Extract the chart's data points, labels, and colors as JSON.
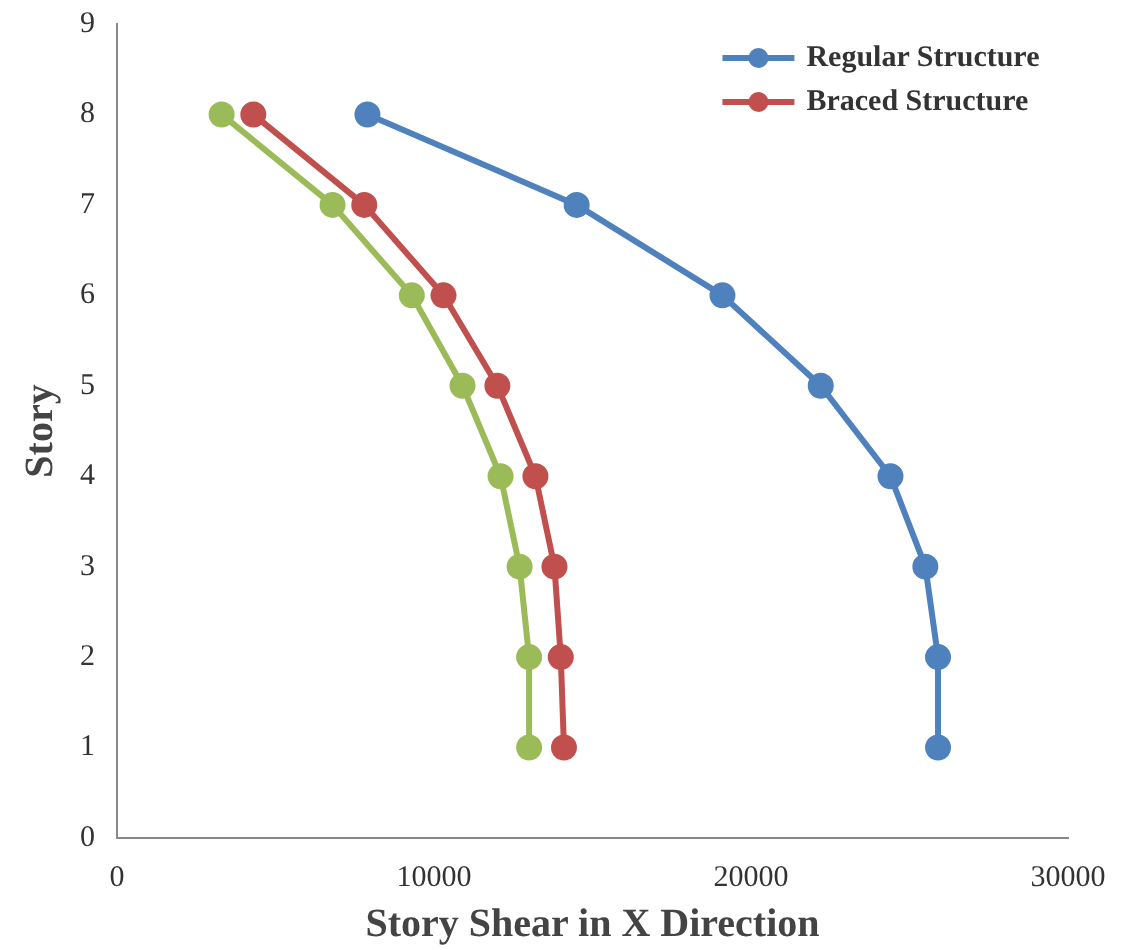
{
  "chart_data": {
    "type": "line",
    "xlabel": "Story Shear in X Direction",
    "ylabel": "Story",
    "xlim": [
      0,
      30000
    ],
    "xticks": [
      0,
      10000,
      20000,
      30000
    ],
    "ylim": [
      0,
      9
    ],
    "yticks": [
      0,
      1,
      2,
      3,
      4,
      5,
      6,
      7,
      8,
      9
    ],
    "grid": false,
    "legend": "top right",
    "marker": "circle",
    "line_style": "solid",
    "series": [
      {
        "name": "Regular Structure",
        "color": "#4f81bd",
        "x": [
          7900,
          14500,
          19100,
          22200,
          24400,
          25500,
          25900,
          25900
        ],
        "values": [
          8,
          7,
          6,
          5,
          4,
          3,
          2,
          1
        ]
      },
      {
        "name": "Braced Structure",
        "color": "#c0504d",
        "x": [
          4300,
          7800,
          10300,
          12000,
          13200,
          13800,
          14000,
          14100
        ],
        "values": [
          8,
          7,
          6,
          5,
          4,
          3,
          2,
          1
        ]
      },
      {
        "color": "#9bbb59",
        "x": [
          3300,
          6800,
          9300,
          10900,
          12100,
          12700,
          13000,
          13000
        ],
        "values": [
          8,
          7,
          6,
          5,
          4,
          3,
          2,
          1
        ]
      }
    ]
  }
}
